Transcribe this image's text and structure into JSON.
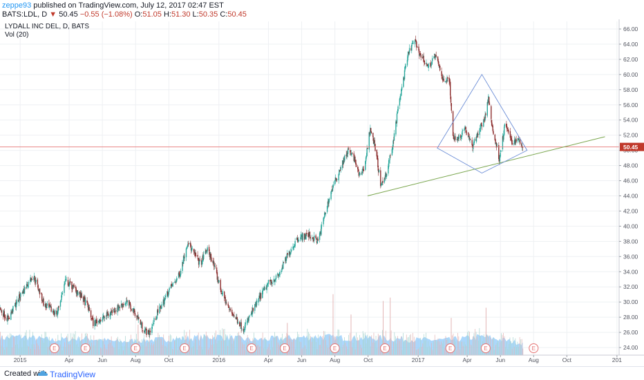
{
  "header": {
    "author": "zeppe93",
    "published": "published on TradingView.com, July 12, 2017 02:47 EST",
    "symbol": "BATS:LDL, D",
    "last": "50.45",
    "change": "−0.55 (−1.08%)",
    "o_label": "O:",
    "o_value": "51.05",
    "h_label": "H:",
    "h_value": "51.30",
    "l_label": "L:",
    "l_value": "50.35",
    "c_label": "C:",
    "c_value": "50.45"
  },
  "legend": {
    "name": "LYDALL INC DEL, D, BATS",
    "volume": "Vol (20)"
  },
  "footer": {
    "created_with": "Created with",
    "brand": "TradingView"
  },
  "colors": {
    "up": "#26a69a",
    "down": "#8b2b2b",
    "trend": "#7aa64e",
    "diamond": "#6b8dd6",
    "price_line": "#e57373",
    "volume": "#90caf9",
    "earnings": "#e57373"
  },
  "chart_data": {
    "type": "candlestick",
    "ylim": [
      23,
      67
    ],
    "yticks": [
      "24.00",
      "26.00",
      "28.00",
      "30.00",
      "32.00",
      "34.00",
      "36.00",
      "38.00",
      "40.00",
      "42.00",
      "44.00",
      "46.00",
      "48.00",
      "50.00",
      "52.00",
      "54.00",
      "56.00",
      "58.00",
      "60.00",
      "62.00",
      "64.00",
      "66.00"
    ],
    "price_label": "50.45",
    "last_price": 50.45,
    "xlim": [
      "2014-11-25",
      "2018-01-05"
    ],
    "xticks": [
      {
        "label": "2015",
        "date": "2015-01-01"
      },
      {
        "label": "Apr",
        "date": "2015-04-01"
      },
      {
        "label": "Jun",
        "date": "2015-06-01"
      },
      {
        "label": "Aug",
        "date": "2015-08-01"
      },
      {
        "label": "Oct",
        "date": "2015-10-01"
      },
      {
        "label": "2016",
        "date": "2016-01-01"
      },
      {
        "label": "Apr",
        "date": "2016-04-01"
      },
      {
        "label": "Jun",
        "date": "2016-06-01"
      },
      {
        "label": "Aug",
        "date": "2016-08-01"
      },
      {
        "label": "Oct",
        "date": "2016-10-01"
      },
      {
        "label": "2017",
        "date": "2017-01-01"
      },
      {
        "label": "Apr",
        "date": "2017-04-01"
      },
      {
        "label": "Jun",
        "date": "2017-06-01"
      },
      {
        "label": "Aug",
        "date": "2017-08-01"
      },
      {
        "label": "Oct",
        "date": "2017-10-01"
      },
      {
        "label": "201",
        "date": "2018-01-01"
      }
    ],
    "price_path": [
      [
        "2014-11-25",
        29.0
      ],
      [
        "2014-12-10",
        27.8
      ],
      [
        "2015-01-01",
        30.8
      ],
      [
        "2015-01-25",
        33.6
      ],
      [
        "2015-02-15",
        29.5
      ],
      [
        "2015-03-10",
        28.5
      ],
      [
        "2015-03-25",
        32.8
      ],
      [
        "2015-04-15",
        31.5
      ],
      [
        "2015-05-05",
        29.5
      ],
      [
        "2015-05-15",
        27.2
      ],
      [
        "2015-06-01",
        27.8
      ],
      [
        "2015-06-20",
        28.8
      ],
      [
        "2015-07-15",
        30.0
      ],
      [
        "2015-08-01",
        28.5
      ],
      [
        "2015-08-15",
        26.5
      ],
      [
        "2015-08-25",
        25.8
      ],
      [
        "2015-09-10",
        28.5
      ],
      [
        "2015-10-01",
        31.5
      ],
      [
        "2015-10-20",
        33.5
      ],
      [
        "2015-11-05",
        38.0
      ],
      [
        "2015-11-15",
        36.5
      ],
      [
        "2015-11-28",
        35.0
      ],
      [
        "2015-12-10",
        37.0
      ],
      [
        "2015-12-20",
        35.5
      ],
      [
        "2016-01-05",
        31.5
      ],
      [
        "2016-01-20",
        29.0
      ],
      [
        "2016-02-05",
        27.5
      ],
      [
        "2016-02-15",
        26.5
      ],
      [
        "2016-03-01",
        28.5
      ],
      [
        "2016-03-15",
        30.5
      ],
      [
        "2016-04-01",
        32.5
      ],
      [
        "2016-04-20",
        33.5
      ],
      [
        "2016-05-05",
        36.0
      ],
      [
        "2016-05-25",
        38.5
      ],
      [
        "2016-06-15",
        38.8
      ],
      [
        "2016-07-01",
        38.0
      ],
      [
        "2016-07-15",
        42.0
      ],
      [
        "2016-07-25",
        44.5
      ],
      [
        "2016-08-10",
        47.5
      ],
      [
        "2016-08-25",
        50.0
      ],
      [
        "2016-09-05",
        49.0
      ],
      [
        "2016-09-15",
        46.5
      ],
      [
        "2016-09-25",
        48.0
      ],
      [
        "2016-10-05",
        53.0
      ],
      [
        "2016-10-15",
        50.0
      ],
      [
        "2016-10-25",
        45.0
      ],
      [
        "2016-11-05",
        47.5
      ],
      [
        "2016-11-15",
        50.5
      ],
      [
        "2016-11-25",
        55.5
      ],
      [
        "2016-12-05",
        59.5
      ],
      [
        "2016-12-15",
        63.0
      ],
      [
        "2016-12-25",
        64.5
      ],
      [
        "2017-01-05",
        62.5
      ],
      [
        "2017-01-20",
        61.0
      ],
      [
        "2017-02-01",
        62.5
      ],
      [
        "2017-02-15",
        59.5
      ],
      [
        "2017-02-28",
        59.0
      ],
      [
        "2017-03-05",
        52.0
      ],
      [
        "2017-03-15",
        51.5
      ],
      [
        "2017-03-28",
        53.0
      ],
      [
        "2017-04-10",
        50.5
      ],
      [
        "2017-04-25",
        53.0
      ],
      [
        "2017-05-05",
        54.5
      ],
      [
        "2017-05-10",
        57.0
      ],
      [
        "2017-05-18",
        52.5
      ],
      [
        "2017-05-30",
        49.0
      ],
      [
        "2017-06-10",
        53.5
      ],
      [
        "2017-06-22",
        51.0
      ],
      [
        "2017-07-05",
        51.5
      ],
      [
        "2017-07-12",
        50.45
      ]
    ],
    "volume_ylim": [
      0,
      4
    ],
    "volume_path": [
      [
        "2014-11-25",
        1.0
      ],
      [
        "2015-01-01",
        1.1
      ],
      [
        "2015-03-01",
        0.9
      ],
      [
        "2015-05-01",
        1.0
      ],
      [
        "2015-07-01",
        0.8
      ],
      [
        "2015-09-01",
        0.9
      ],
      [
        "2015-11-01",
        1.0
      ],
      [
        "2016-01-01",
        1.1
      ],
      [
        "2016-03-01",
        0.9
      ],
      [
        "2016-05-01",
        1.0
      ],
      [
        "2016-07-01",
        1.1
      ],
      [
        "2016-09-01",
        1.0
      ],
      [
        "2016-11-01",
        1.0
      ],
      [
        "2017-01-01",
        0.9
      ],
      [
        "2017-03-01",
        0.9
      ],
      [
        "2017-05-01",
        1.1
      ],
      [
        "2017-07-12",
        0.7
      ]
    ],
    "volume_spikes": [
      [
        "2016-07-28",
        3.6
      ],
      [
        "2016-10-28",
        3.2
      ],
      [
        "2016-11-10",
        3.4
      ],
      [
        "2016-08-30",
        2.4
      ],
      [
        "2017-05-05",
        2.8
      ],
      [
        "2017-03-02",
        2.2
      ],
      [
        "2015-08-05",
        1.8
      ],
      [
        "2016-05-05",
        1.9
      ]
    ],
    "earnings_label": "E",
    "earnings_dates": [
      "2015-03-05",
      "2015-05-01",
      "2015-08-01",
      "2015-10-30",
      "2016-03-01",
      "2016-05-01",
      "2016-08-01",
      "2016-11-01",
      "2017-03-01",
      "2017-05-05",
      "2017-08-01"
    ],
    "trendline": [
      [
        "2016-09-30",
        44.0
      ],
      [
        "2017-12-10",
        51.8
      ]
    ],
    "diamond": [
      [
        "2017-04-28",
        60.0
      ],
      [
        "2017-07-20",
        50.0
      ],
      [
        "2017-04-28",
        47.0
      ],
      [
        "2017-02-05",
        50.3
      ]
    ]
  }
}
